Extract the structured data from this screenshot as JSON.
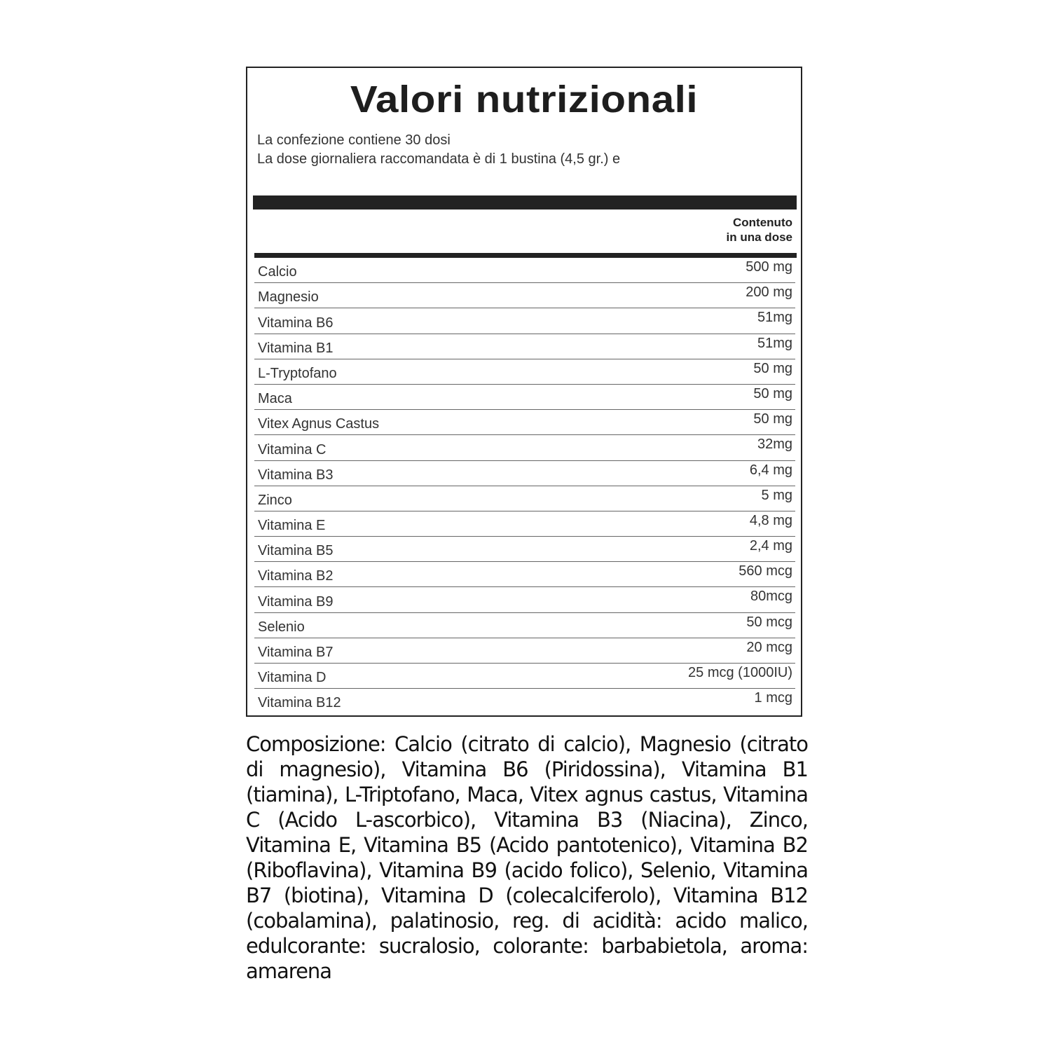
{
  "title": "Valori nutrizionali",
  "subtitle_lines": [
    "La confezione contiene 30 dosi",
    "La dose giornaliera raccomandata è di 1 bustina (4,5 gr.) e"
  ],
  "column_header": [
    "Contenuto",
    "in una dose"
  ],
  "rows": [
    {
      "name": "Calcio",
      "value": "500 mg"
    },
    {
      "name": "Magnesio",
      "value": "200 mg"
    },
    {
      "name": "Vitamina B6",
      "value": "51mg"
    },
    {
      "name": "Vitamina B1",
      "value": "51mg"
    },
    {
      "name": "L-Tryptofano",
      "value": "50 mg"
    },
    {
      "name": "Maca",
      "value": "50 mg"
    },
    {
      "name": "Vitex Agnus Castus",
      "value": "50 mg"
    },
    {
      "name": "Vitamina  C",
      "value": "32mg"
    },
    {
      "name": "Vitamina  B3",
      "value": "6,4 mg"
    },
    {
      "name": "Zinco",
      "value": "5 mg"
    },
    {
      "name": "Vitamina  E",
      "value": "4,8 mg"
    },
    {
      "name": "Vitamina B5",
      "value": "2,4 mg"
    },
    {
      "name": "Vitamina B2",
      "value": "560 mcg"
    },
    {
      "name": "Vitamina B9",
      "value": "80mcg"
    },
    {
      "name": "Selenio",
      "value": "50 mcg"
    },
    {
      "name": "Vitamina B7",
      "value": "20 mcg"
    },
    {
      "name": "Vitamina D",
      "value": "25 mcg (1000IU)"
    },
    {
      "name": "Vitamina B12",
      "value": "1 mcg"
    }
  ],
  "composition": "Composizione: Calcio (citrato di calcio), Magnesio (citrato di magnesio), Vitamina B6 (Piridossina), Vitamina B1 (tiamina), L-Triptofano, Maca, Vitex agnus castus, Vitamina C (Acido L-ascorbico), Vitamina B3 (Niacina), Zinco, Vitamina E, Vitamina B5 (Acido pantotenico), Vitamina B2 (Riboflavina), Vitamina B9 (acido folico), Selenio, Vitamina B7 (biotina), Vitamina D (colecalciferolo), Vitamina B12 (cobalamina), palatinosio, reg. di acidità: acido malico, edulcorante: sucralosio, colorante: barbabietola, aroma: amarena"
}
